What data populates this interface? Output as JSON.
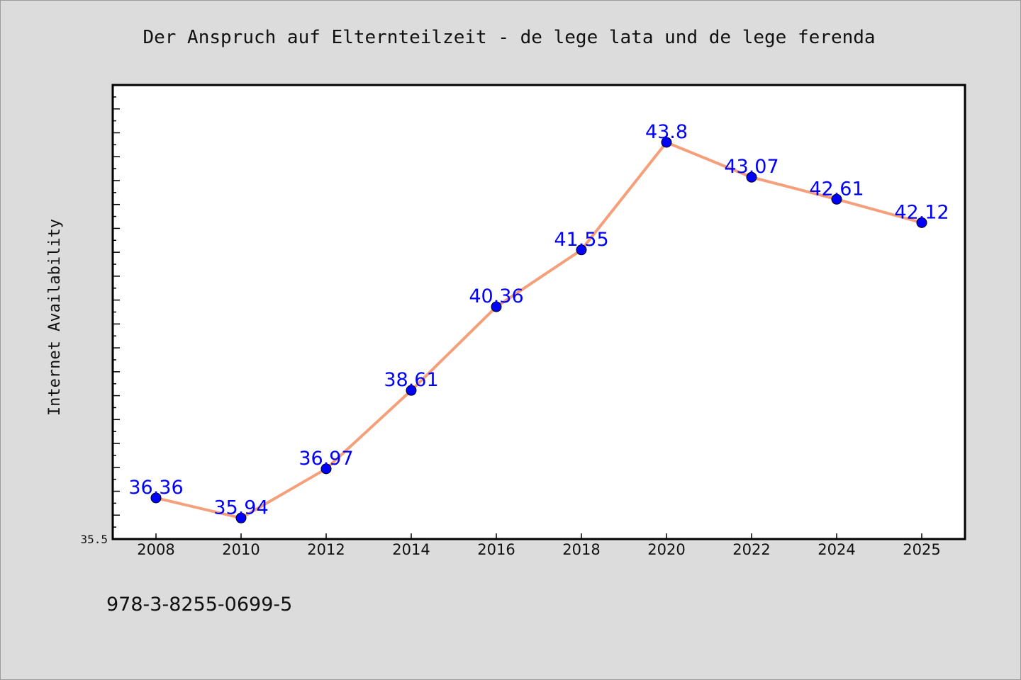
{
  "chart_data": {
    "type": "line",
    "title": "Der Anspruch auf Elternteilzeit - de lege lata und de lege ferenda",
    "ylabel": "Internet Availability",
    "xlabel": "",
    "categories": [
      "2008",
      "2010",
      "2012",
      "2014",
      "2016",
      "2018",
      "2020",
      "2022",
      "2024",
      "2025"
    ],
    "series": [
      {
        "values": [
          36.36,
          35.94,
          36.97,
          38.61,
          40.36,
          41.55,
          43.8,
          43.07,
          42.61,
          42.12
        ],
        "labels": [
          "36.36",
          "35.94",
          "36.97",
          "38.61",
          "40.36",
          "41.55",
          "43.8",
          "43.07",
          "42.61",
          "42.12"
        ],
        "line_color": "#f5a07a",
        "marker_color": "#0000ff",
        "label_color": "#0000ff"
      }
    ],
    "ylim": [
      35.5,
      45
    ],
    "y_tick_labels": [
      "35.5"
    ],
    "grid": false,
    "legend": "none",
    "footer_text": "978-3-8255-0699-5",
    "background_color": "#dcdcdc",
    "plot_background_color": "#ffffff"
  }
}
